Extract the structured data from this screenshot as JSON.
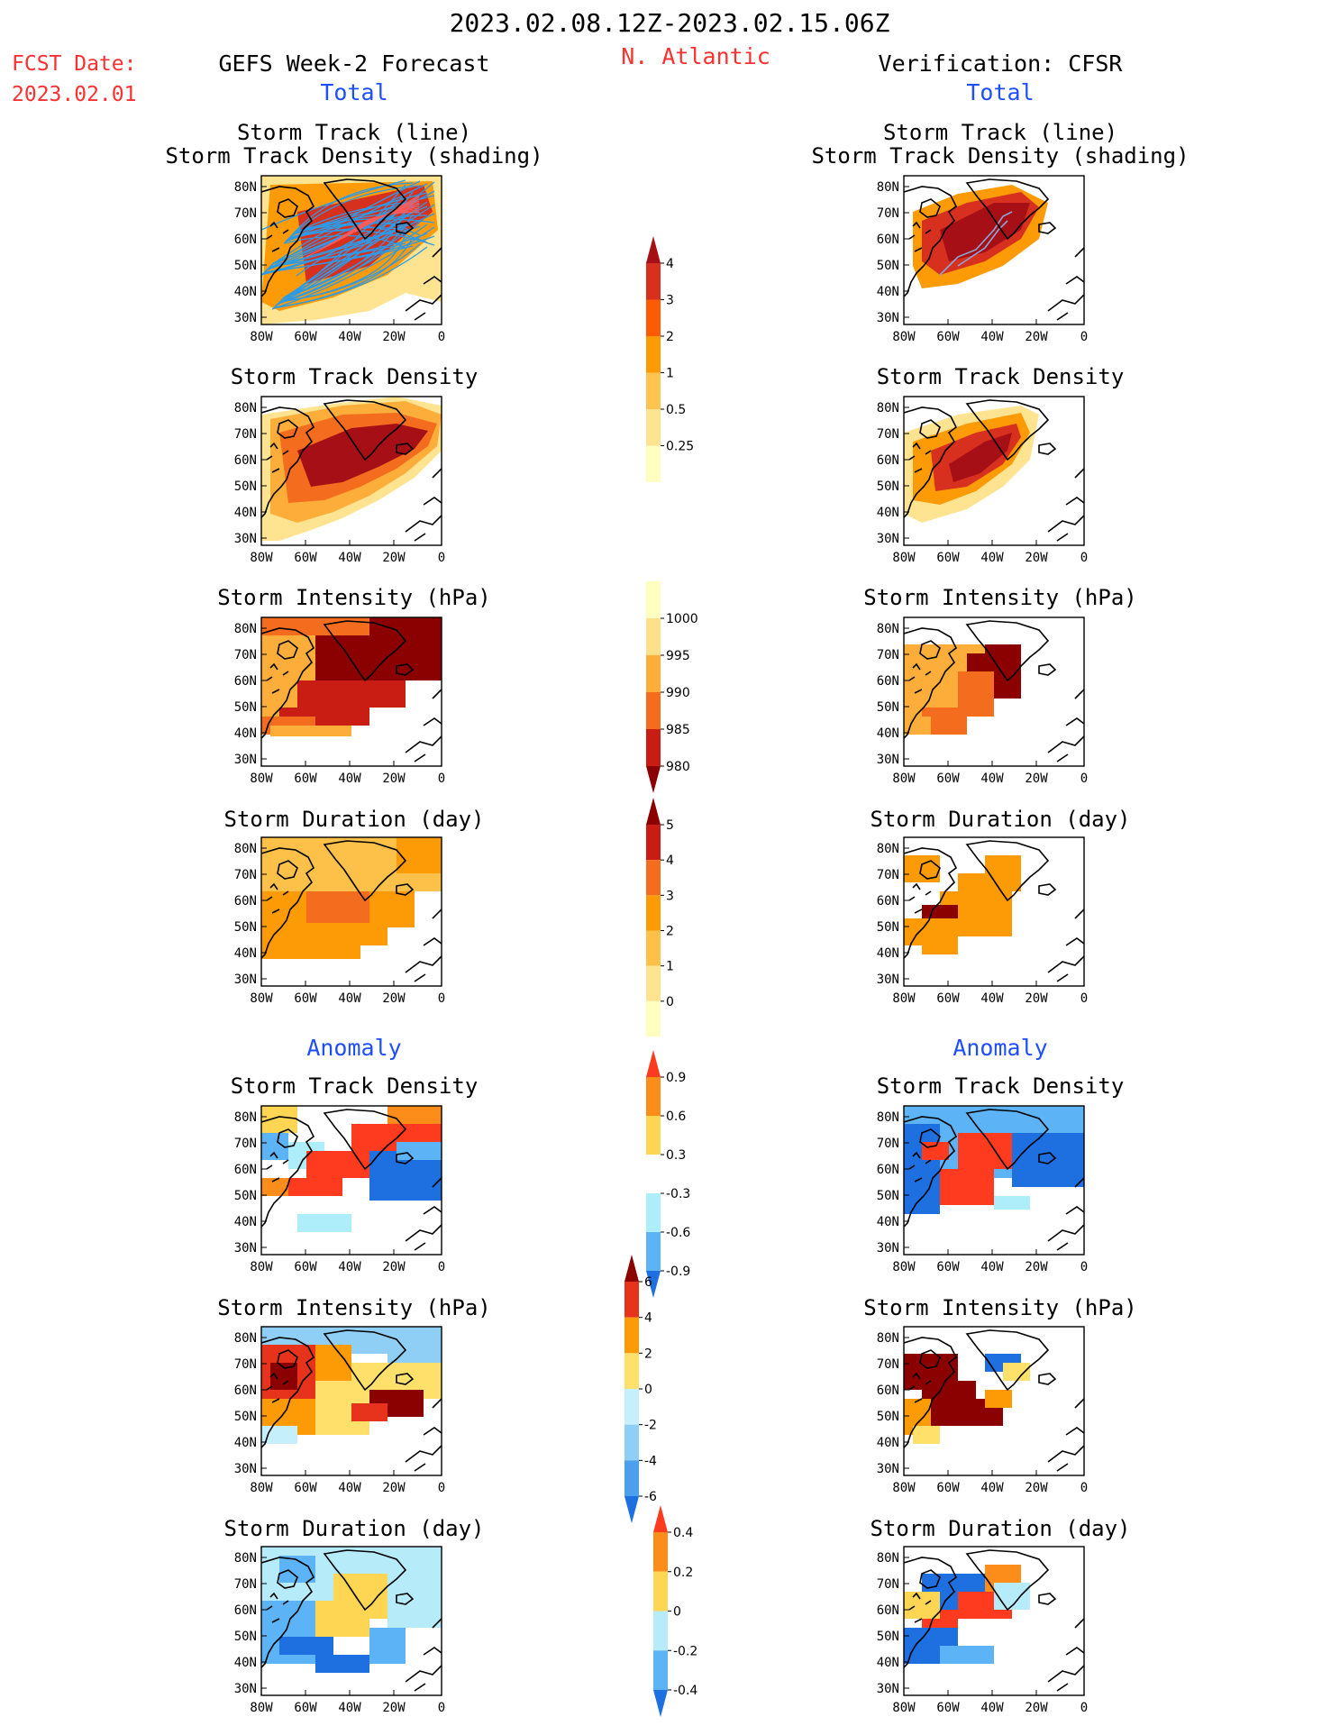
{
  "header": {
    "date_range": "2023.02.08.12Z-2023.02.15.06Z",
    "fcst_label": "FCST Date:",
    "fcst_date": "2023.02.01",
    "left_title": "GEFS Week-2 Forecast",
    "region": "N. Atlantic",
    "right_title": "Verification: CFSR"
  },
  "sections": {
    "total": "Total",
    "anomaly": "Anomaly"
  },
  "panel_titles": {
    "track_line": "Storm Track (line)",
    "track_shading": "Storm Track Density (shading)",
    "density": "Storm Track Density",
    "intensity": "Storm Intensity (hPa)",
    "duration": "Storm Duration (day)"
  },
  "axes": {
    "lat_ticks": [
      "80N",
      "70N",
      "60N",
      "50N",
      "40N",
      "30N"
    ],
    "lon_ticks": [
      "80W",
      "60W",
      "40W",
      "20W",
      "0"
    ]
  },
  "colorbars": {
    "density_total": {
      "labels": [
        "4",
        "3",
        "2",
        "1",
        "0.5",
        "0.25"
      ],
      "colors": [
        "#a50f15",
        "#d7301f",
        "#fc5a03",
        "#fd9b07",
        "#fec44f",
        "#fee391",
        "#ffffbf"
      ]
    },
    "intensity_total": {
      "labels": [
        "1000",
        "995",
        "990",
        "985",
        "980"
      ],
      "colors": [
        "#ffffc0",
        "#fee08b",
        "#fdae3a",
        "#f46d1f",
        "#c91d13",
        "#8b0000"
      ]
    },
    "duration_total": {
      "labels": [
        "5",
        "4",
        "3",
        "2",
        "1",
        "0"
      ],
      "colors": [
        "#8b0000",
        "#c91d13",
        "#f46d1f",
        "#fd9b07",
        "#fdc14a",
        "#fee391",
        "#ffffc0"
      ]
    },
    "density_anom": {
      "labels": [
        "0.9",
        "0.6",
        "0.3",
        "-0.3",
        "-0.6",
        "-0.9"
      ],
      "colors": [
        "#ff3b1f",
        "#fd8d1a",
        "#fed654",
        "#ffffff",
        "#aeeefa",
        "#5cb3f5",
        "#1e6fe0"
      ]
    },
    "intensity_anom": {
      "labels": [
        "6",
        "4",
        "2",
        "0",
        "-2",
        "-4",
        "-6"
      ],
      "colors": [
        "#8b0000",
        "#e8331c",
        "#fd9b07",
        "#fee06b",
        "#c5f0fb",
        "#8fcff5",
        "#4aa0ee",
        "#1e6fe0"
      ]
    },
    "duration_anom": {
      "labels": [
        "0.4",
        "0.2",
        "0",
        "-0.2",
        "-0.4"
      ],
      "colors": [
        "#ff3b1f",
        "#fd8d1a",
        "#fed654",
        "#b6ecfa",
        "#5cb3f5",
        "#1e6fe0"
      ]
    }
  }
}
